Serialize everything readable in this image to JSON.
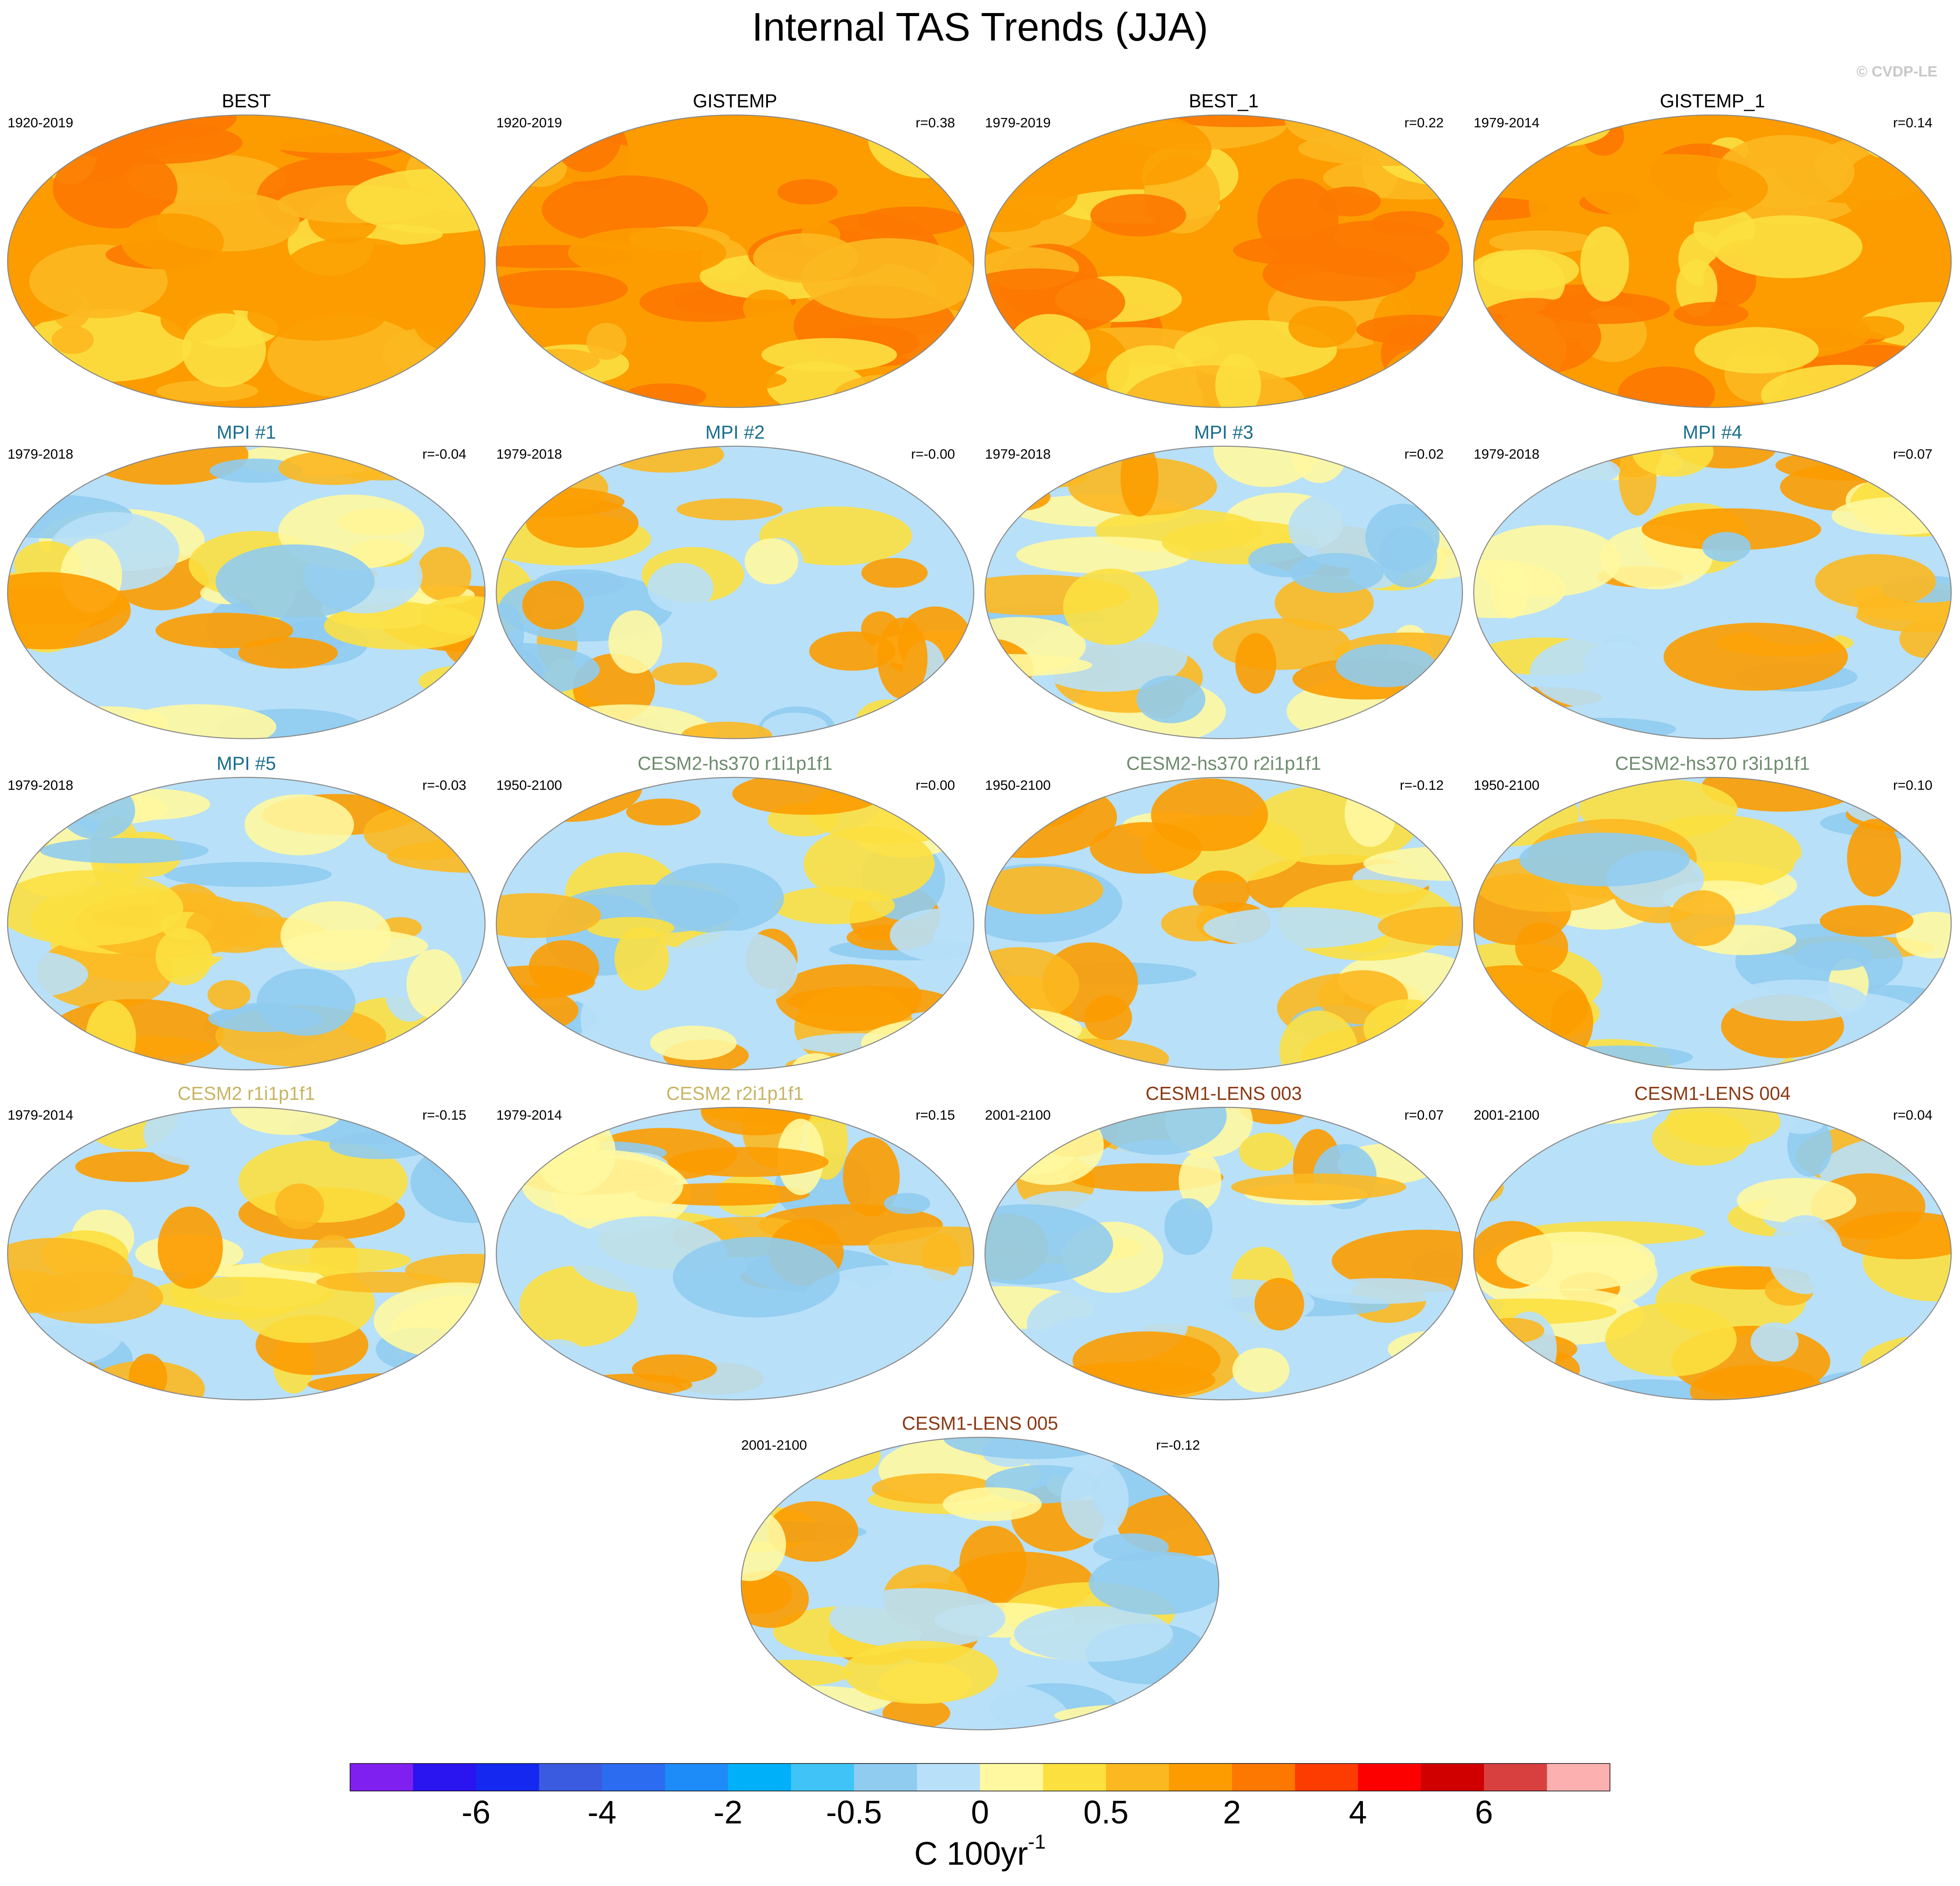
{
  "title": "Internal TAS Trends (JJA)",
  "watermark": "© CVDP-LE",
  "panels": [
    {
      "title": "BEST",
      "title_color": "#000000",
      "period": "1920-2019"
    },
    {
      "title": "GISTEMP",
      "title_color": "#000000",
      "period": "1920-2019",
      "r": "r=0.38"
    },
    {
      "title": "BEST_1",
      "title_color": "#000000",
      "period": "1979-2019",
      "r": "r=0.22"
    },
    {
      "title": "GISTEMP_1",
      "title_color": "#000000",
      "period": "1979-2014",
      "r": "r=0.14"
    },
    {
      "title": "MPI #1",
      "title_color": "#1a6e8e",
      "period": "1979-2018",
      "r": "r=-0.04"
    },
    {
      "title": "MPI #2",
      "title_color": "#1a6e8e",
      "period": "1979-2018",
      "r": "r=-0.00"
    },
    {
      "title": "MPI #3",
      "title_color": "#1a6e8e",
      "period": "1979-2018",
      "r": "r=0.02"
    },
    {
      "title": "MPI #4",
      "title_color": "#1a6e8e",
      "period": "1979-2018",
      "r": "r=0.07"
    },
    {
      "title": "MPI #5",
      "title_color": "#1a6e8e",
      "period": "1979-2018",
      "r": "r=-0.03"
    },
    {
      "title": "CESM2-hs370 r1i1p1f1",
      "title_color": "#6e8c6e",
      "period": "1950-2100",
      "r": "r=0.00"
    },
    {
      "title": "CESM2-hs370 r2i1p1f1",
      "title_color": "#6e8c6e",
      "period": "1950-2100",
      "r": "r=-0.12"
    },
    {
      "title": "CESM2-hs370 r3i1p1f1",
      "title_color": "#6e8c6e",
      "period": "1950-2100",
      "r": "r=0.10"
    },
    {
      "title": "CESM2 r1i1p1f1",
      "title_color": "#c8b464",
      "period": "1979-2014",
      "r": "r=-0.15"
    },
    {
      "title": "CESM2 r2i1p1f1",
      "title_color": "#c8b464",
      "period": "1979-2014",
      "r": "r=0.15"
    },
    {
      "title": "CESM1-LENS 003",
      "title_color": "#8b3a14",
      "period": "2001-2100",
      "r": "r=0.07"
    },
    {
      "title": "CESM1-LENS 004",
      "title_color": "#8b3a14",
      "period": "2001-2100",
      "r": "r=0.04"
    },
    {
      "title": "CESM1-LENS 005",
      "title_color": "#8b3a14",
      "period": "2001-2100",
      "r": "r=-0.12"
    }
  ],
  "colorbar": {
    "colors": [
      "#8020f0",
      "#2a14f0",
      "#1428f0",
      "#3a5ae0",
      "#2c6cf0",
      "#1e8cf8",
      "#00b0f8",
      "#40c4f8",
      "#90ccf0",
      "#b8e0f8",
      "#fff8a0",
      "#fce040",
      "#fcb820",
      "#fc9c00",
      "#fc7800",
      "#fc3c00",
      "#fc0000",
      "#d00000",
      "#d84040",
      "#fcb0b0"
    ],
    "labels": [
      "-6",
      "-4",
      "-2",
      "-0.5",
      "0",
      "0.5",
      "2",
      "4",
      "6"
    ],
    "unit": "C 100yr",
    "unit_exponent": "-1"
  }
}
